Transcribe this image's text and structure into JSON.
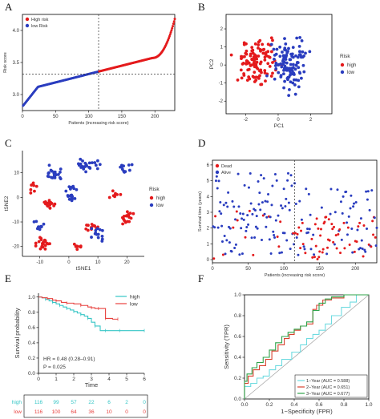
{
  "panels": [
    "A",
    "B",
    "C",
    "D",
    "E",
    "F"
  ],
  "chart_data": [
    {
      "panel": "A",
      "type": "scatter",
      "xlabel": "Patients (increasing risk score)",
      "ylabel": "Risk score",
      "x_ticks": [
        "0",
        "50",
        "100",
        "150",
        "200"
      ],
      "y_ticks": [
        "3.0",
        "3.5",
        "4.0"
      ],
      "xlim": [
        0,
        230
      ],
      "ylim": [
        2.75,
        4.25
      ],
      "legend": [
        "High risk",
        "low Risk"
      ],
      "legend_position": "top-left",
      "cutoff_x": 115,
      "cutoff_y": 3.32,
      "series": [
        {
          "name": "High risk",
          "color": "#e41a1c",
          "x_range": [
            116,
            228
          ],
          "y_range": [
            3.33,
            4.2
          ]
        },
        {
          "name": "low Risk",
          "color": "#2a3dbf",
          "x_range": [
            1,
            115
          ],
          "y_range": [
            2.82,
            3.32
          ]
        }
      ]
    },
    {
      "panel": "B",
      "type": "scatter",
      "xlabel": "PC1",
      "ylabel": "PC2",
      "x_ticks": [
        "-2",
        "0",
        "2"
      ],
      "y_ticks": [
        "-2",
        "-1",
        "0",
        "1",
        "2"
      ],
      "xlim": [
        -3.2,
        3.3
      ],
      "ylim": [
        -2.7,
        2.8
      ],
      "legend_title": "Risk",
      "legend": [
        "high",
        "low"
      ],
      "legend_position": "right",
      "series": [
        {
          "name": "high",
          "color": "#e41a1c"
        },
        {
          "name": "low",
          "color": "#2a3dbf"
        }
      ]
    },
    {
      "panel": "C",
      "type": "scatter",
      "xlabel": "tSNE1",
      "ylabel": "tSNE2",
      "x_ticks": [
        "-10",
        "0",
        "10",
        "20"
      ],
      "y_ticks": [
        "-20",
        "-10",
        "0",
        "10"
      ],
      "xlim": [
        -16,
        26
      ],
      "ylim": [
        -24,
        19
      ],
      "legend_title": "Risk",
      "legend": [
        "high",
        "low"
      ],
      "legend_position": "right",
      "series": [
        {
          "name": "high",
          "color": "#e41a1c"
        },
        {
          "name": "low",
          "color": "#2a3dbf"
        }
      ]
    },
    {
      "panel": "D",
      "type": "scatter",
      "xlabel": "Patients (increasing risk score)",
      "ylabel": "Survival time (years)",
      "x_ticks": [
        "0",
        "50",
        "100",
        "150",
        "200"
      ],
      "y_ticks": [
        "0",
        "1",
        "2",
        "3",
        "4",
        "5",
        "6"
      ],
      "xlim": [
        0,
        230
      ],
      "ylim": [
        -0.2,
        6.3
      ],
      "cutoff_x": 115,
      "legend": [
        "Dead",
        "Alive"
      ],
      "legend_position": "top-left",
      "series": [
        {
          "name": "Dead",
          "color": "#e41a1c"
        },
        {
          "name": "Alive",
          "color": "#2a3dbf"
        }
      ]
    },
    {
      "panel": "E",
      "type": "line",
      "xlabel": "Time",
      "ylabel": "Survival probability",
      "x_ticks": [
        "0",
        "1",
        "2",
        "3",
        "4",
        "5",
        "6"
      ],
      "y_ticks": [
        "0.0",
        "0.2",
        "0.4",
        "0.6",
        "0.8",
        "1.0"
      ],
      "xlim": [
        0,
        6
      ],
      "ylim": [
        0,
        1.05
      ],
      "legend": [
        "high",
        "low"
      ],
      "legend_position": "top-right",
      "annotations": [
        "HR = 0.48 (0.28–0.91)",
        "P = 0.025"
      ],
      "series": [
        {
          "name": "high",
          "color": "#36c6c6",
          "x": [
            0,
            0.2,
            0.4,
            0.6,
            0.8,
            1.0,
            1.2,
            1.4,
            1.6,
            1.8,
            2.0,
            2.2,
            2.4,
            2.6,
            2.8,
            3.0,
            3.2,
            3.5,
            3.8,
            4.2,
            4.6,
            5.2,
            6.0
          ],
          "y": [
            1.0,
            0.99,
            0.97,
            0.95,
            0.93,
            0.91,
            0.89,
            0.87,
            0.85,
            0.83,
            0.81,
            0.79,
            0.77,
            0.75,
            0.72,
            0.67,
            0.62,
            0.56,
            0.56,
            0.56,
            0.56,
            0.56,
            0.56
          ]
        },
        {
          "name": "low",
          "color": "#e8413e",
          "x": [
            0,
            0.2,
            0.5,
            0.8,
            1.0,
            1.3,
            1.6,
            2.0,
            2.4,
            2.8,
            3.0,
            3.2,
            3.4,
            3.6,
            3.8,
            4.2,
            4.5
          ],
          "y": [
            1.0,
            0.99,
            0.98,
            0.96,
            0.95,
            0.93,
            0.92,
            0.91,
            0.89,
            0.87,
            0.86,
            0.85,
            0.85,
            0.85,
            0.72,
            0.71,
            0.71
          ]
        }
      ],
      "risk_table": {
        "rows": [
          {
            "name": "high",
            "color": "#36c6c6",
            "values": [
              "116",
              "99",
              "57",
              "22",
              "6",
              "2",
              "0"
            ]
          },
          {
            "name": "low",
            "color": "#e8413e",
            "values": [
              "116",
              "100",
              "64",
              "36",
              "10",
              "0",
              "0"
            ]
          }
        ]
      }
    },
    {
      "panel": "F",
      "type": "line",
      "xlabel": "1−Specificity (FPR)",
      "ylabel": "Sensitivity (TPR)",
      "x_ticks": [
        "0.0",
        "0.2",
        "0.4",
        "0.6",
        "0.8",
        "1.0"
      ],
      "y_ticks": [
        "0.0",
        "0.2",
        "0.4",
        "0.6",
        "0.8",
        "1.0"
      ],
      "xlim": [
        0,
        1
      ],
      "ylim": [
        0,
        1
      ],
      "legend_position": "bottom-right",
      "series": [
        {
          "name": "1−Year (AUC = 0.588)",
          "color": "#6fdbe0",
          "x": [
            0,
            0.05,
            0.1,
            0.15,
            0.2,
            0.25,
            0.3,
            0.38,
            0.45,
            0.5,
            0.55,
            0.6,
            0.65,
            0.7,
            0.78,
            0.85,
            0.9,
            1.0
          ],
          "y": [
            0,
            0.12,
            0.15,
            0.2,
            0.22,
            0.28,
            0.32,
            0.38,
            0.45,
            0.52,
            0.58,
            0.62,
            0.66,
            0.72,
            0.8,
            0.88,
            0.93,
            1.0
          ]
        },
        {
          "name": "2−Year (AUC = 0.651)",
          "color": "#d8412f",
          "x": [
            0,
            0.03,
            0.07,
            0.12,
            0.17,
            0.22,
            0.27,
            0.32,
            0.36,
            0.4,
            0.45,
            0.5,
            0.55,
            0.58,
            0.63,
            0.7,
            0.8,
            0.9,
            1.0
          ],
          "y": [
            0,
            0.15,
            0.22,
            0.28,
            0.32,
            0.38,
            0.46,
            0.52,
            0.58,
            0.62,
            0.66,
            0.7,
            0.72,
            0.86,
            0.9,
            0.95,
            0.97,
            1.0,
            1.0
          ]
        },
        {
          "name": "3−Year (AUC = 0.677)",
          "color": "#2fa34a",
          "x": [
            0,
            0.02,
            0.06,
            0.1,
            0.15,
            0.2,
            0.25,
            0.3,
            0.35,
            0.4,
            0.45,
            0.5,
            0.55,
            0.6,
            0.65,
            0.7,
            0.8,
            0.9,
            1.0
          ],
          "y": [
            0,
            0.17,
            0.24,
            0.3,
            0.35,
            0.4,
            0.47,
            0.54,
            0.6,
            0.64,
            0.67,
            0.7,
            0.74,
            0.85,
            0.92,
            0.96,
            0.98,
            1.0,
            1.0
          ]
        }
      ]
    }
  ]
}
